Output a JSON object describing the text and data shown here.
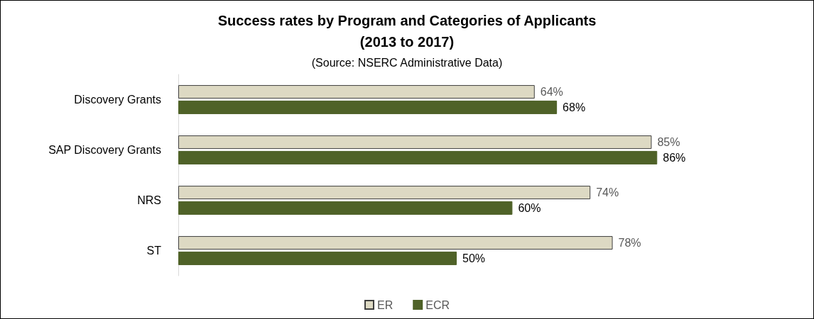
{
  "chart_data": {
    "type": "bar",
    "orientation": "horizontal",
    "title": "Success rates by Program and Categories of Applicants\n(2013 to 2017)",
    "subtitle": "(Source: NSERC Administrative Data)",
    "categories": [
      "Discovery Grants",
      "SAP Discovery Grants",
      "NRS",
      "ST"
    ],
    "series": [
      {
        "name": "ER",
        "color": "#ddd9c3",
        "values": [
          64,
          85,
          74,
          78
        ],
        "value_labels": [
          "64%",
          "85%",
          "74%",
          "78%"
        ]
      },
      {
        "name": "ECR",
        "color": "#4f6228",
        "values": [
          68,
          86,
          60,
          50
        ],
        "value_labels": [
          "68%",
          "86%",
          "60%",
          "50%"
        ]
      }
    ],
    "legend": "bottom",
    "grid": false
  }
}
